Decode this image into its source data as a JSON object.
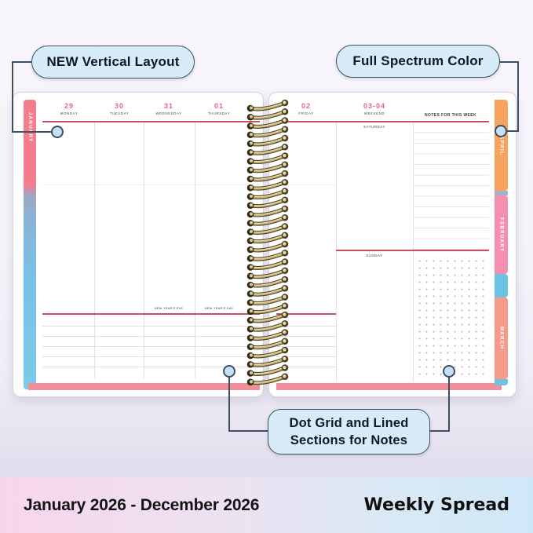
{
  "callouts": {
    "top_left": "NEW Vertical Layout",
    "top_right": "Full Spectrum Color",
    "bottom_line1": "Dot Grid and Lined",
    "bottom_line2": "Sections for Notes"
  },
  "footer": {
    "date_range": "January 2026 - December 2026",
    "label": "Weekly Spread"
  },
  "planner": {
    "left_page": {
      "month_tab": "JANUARY",
      "days": [
        {
          "date": "29",
          "name": "MONDAY",
          "holiday": ""
        },
        {
          "date": "30",
          "name": "TUESDAY",
          "holiday": ""
        },
        {
          "date": "31",
          "name": "WEDNESDAY",
          "holiday": "NEW YEAR'S EVE"
        },
        {
          "date": "01",
          "name": "THURSDAY",
          "holiday": "NEW YEAR'S DAY"
        }
      ]
    },
    "right_page": {
      "friday": {
        "date": "02",
        "name": "FRIDAY"
      },
      "weekend": {
        "date": "03-04",
        "name": "WEEKEND",
        "day1": "SATURDAY",
        "day2": "SUNDAY"
      },
      "notes_header": "NOTES FOR THIS WEEK",
      "month_tabs": [
        {
          "label": "APRIL",
          "color": "#f6a35d"
        },
        {
          "label": "FEBRUARY",
          "color": "#f48fb0"
        },
        {
          "label": "MARCH",
          "color": "#f49b8c"
        }
      ]
    },
    "colors": {
      "accent_red": "#c75063",
      "date_pink": "#e0697f",
      "january_tab_pink": "#f47d8d",
      "page_edge_blue": "#76c2e8",
      "bottom_edge_pink": "#f28d9a",
      "spiral_gold": "#c8b77b",
      "callout_fill": "#d8ebf8",
      "callout_border": "#3e4f63"
    }
  }
}
